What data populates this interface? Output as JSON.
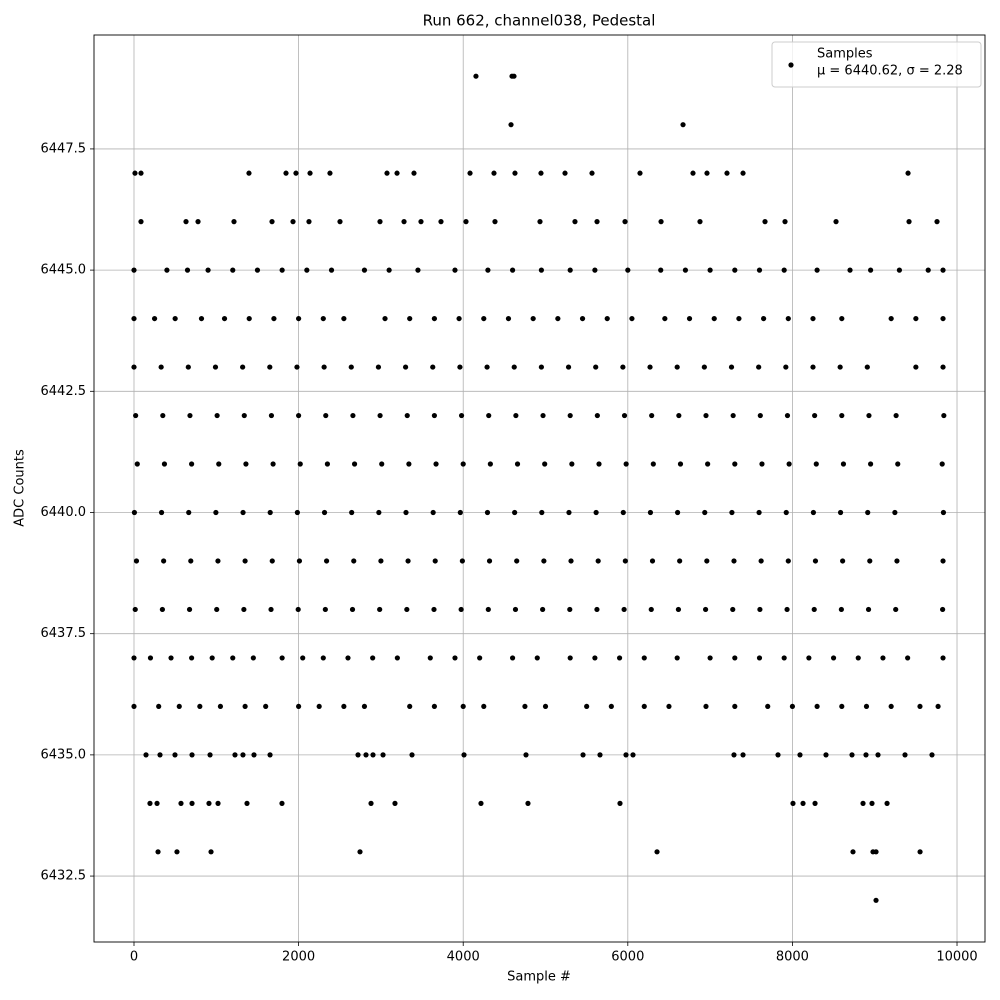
{
  "chart_data": {
    "type": "scatter",
    "title": "Run 662, channel038, Pedestal",
    "x_label": "Sample #",
    "y_label": "ADC Counts",
    "legend_note": "μ = 6440.62, σ = 2.28",
    "legend": "upper right",
    "grid": true,
    "xlim": [
      -486,
      10340
    ],
    "ylim": [
      6431.14,
      6449.85
    ],
    "xticks": [
      0,
      2000,
      4000,
      6000,
      8000,
      10000
    ],
    "yticks": [
      6432.5,
      {
        "value": 6435,
        "label": "6435.0"
      },
      6437.5,
      {
        "value": 6440,
        "label": "6440.0"
      },
      6442.5,
      {
        "value": 6445,
        "label": "6445.0"
      },
      6447.5
    ],
    "series": [
      {
        "name": "Samples",
        "color": "#000000",
        "x": [
          4155,
          4593,
          4617,
          4581,
          6671,
          12,
          85,
          1397,
          1847,
          1968,
          2139,
          2381,
          3074,
          3196,
          3402,
          4083,
          4374,
          4629,
          4945,
          5237,
          5565,
          6148,
          6792,
          6962,
          7205,
          7400,
          9405,
          85,
          632,
          778,
          1215,
          1677,
          1932,
          2126,
          2503,
          2989,
          3281,
          3487,
          3730,
          4034,
          4386,
          4933,
          5358,
          5626,
          5966,
          6404,
          6877,
          7667,
          7910,
          8530,
          9417,
          9757,
          0,
          400,
          650,
          900,
          1200,
          1500,
          1800,
          2100,
          2400,
          2800,
          3100,
          3450,
          3900,
          4300,
          4600,
          4950,
          5300,
          5600,
          6000,
          6400,
          6700,
          7000,
          7300,
          7600,
          7900,
          8300,
          8700,
          8950,
          9300,
          9650,
          9830,
          0,
          250,
          500,
          820,
          1100,
          1400,
          1700,
          2000,
          2300,
          2550,
          3050,
          3350,
          3650,
          3950,
          4250,
          4550,
          4850,
          5150,
          5450,
          5750,
          6050,
          6450,
          6750,
          7050,
          7350,
          7650,
          7950,
          8250,
          8600,
          9200,
          9500,
          9830,
          0,
          330,
          660,
          990,
          1320,
          1650,
          1980,
          2310,
          2640,
          2970,
          3300,
          3630,
          3960,
          4290,
          4620,
          4950,
          5280,
          5610,
          5940,
          6270,
          6600,
          6930,
          7260,
          7590,
          7920,
          8250,
          8580,
          8910,
          9500,
          9830,
          20,
          350,
          680,
          1010,
          1340,
          1670,
          2000,
          2330,
          2660,
          2990,
          3320,
          3650,
          3980,
          4310,
          4640,
          4970,
          5300,
          5630,
          5960,
          6290,
          6620,
          6950,
          7280,
          7610,
          7940,
          8270,
          8600,
          8930,
          9260,
          9840,
          40,
          370,
          700,
          1030,
          1360,
          1690,
          2020,
          2350,
          2680,
          3010,
          3340,
          3670,
          4000,
          4330,
          4660,
          4990,
          5320,
          5650,
          5980,
          6310,
          6640,
          6970,
          7300,
          7630,
          7960,
          8290,
          8620,
          8950,
          9280,
          9820,
          5,
          335,
          665,
          995,
          1325,
          1655,
          1985,
          2315,
          2645,
          2975,
          3305,
          3635,
          3965,
          4295,
          4625,
          4955,
          5285,
          5615,
          5945,
          6275,
          6605,
          6935,
          7265,
          7595,
          7925,
          8255,
          8585,
          8915,
          9245,
          9835,
          30,
          360,
          690,
          1020,
          1350,
          1680,
          2010,
          2340,
          2670,
          3000,
          3330,
          3660,
          3990,
          4320,
          4650,
          4980,
          5310,
          5640,
          5970,
          6300,
          6630,
          6960,
          7290,
          7620,
          7950,
          8280,
          8610,
          8940,
          9270,
          9830,
          15,
          345,
          675,
          1005,
          1335,
          1665,
          1995,
          2325,
          2655,
          2985,
          3315,
          3645,
          3975,
          4305,
          4635,
          4965,
          5295,
          5625,
          5955,
          6285,
          6615,
          6945,
          7275,
          7605,
          7935,
          8265,
          8595,
          8925,
          9255,
          9825,
          0,
          200,
          450,
          700,
          950,
          1200,
          1450,
          1800,
          2050,
          2300,
          2600,
          2900,
          3200,
          3600,
          3900,
          4200,
          4600,
          4900,
          5300,
          5600,
          5900,
          6200,
          6600,
          7000,
          7300,
          7600,
          7900,
          8200,
          8500,
          8800,
          9100,
          9400,
          9830,
          0,
          300,
          550,
          800,
          1050,
          1350,
          1600,
          2000,
          2250,
          2550,
          2800,
          3350,
          3650,
          4000,
          4250,
          4750,
          5000,
          5500,
          5800,
          6200,
          6500,
          6950,
          7300,
          7700,
          8000,
          8300,
          8600,
          8900,
          9200,
          9550,
          9770,
          146,
          316,
          498,
          705,
          924,
          1227,
          1324,
          1458,
          1653,
          2722,
          2819,
          2904,
          3026,
          3378,
          4010,
          4763,
          5456,
          5662,
          5978,
          6063,
          7290,
          7400,
          7825,
          8092,
          8408,
          8724,
          8894,
          9040,
          9368,
          9696,
          194,
          280,
          571,
          705,
          911,
          1021,
          1373,
          1798,
          2880,
          3171,
          4216,
          4787,
          5905,
          8007,
          8129,
          8275,
          8858,
          8967,
          9150,
          292,
          522,
          936,
          2746,
          6355,
          8736,
          8979,
          9016,
          9551,
          9016
        ],
        "values": [
          6449,
          6449,
          6449,
          6448,
          6448,
          6447,
          6447,
          6447,
          6447,
          6447,
          6447,
          6447,
          6447,
          6447,
          6447,
          6447,
          6447,
          6447,
          6447,
          6447,
          6447,
          6447,
          6447,
          6447,
          6447,
          6447,
          6447,
          6446,
          6446,
          6446,
          6446,
          6446,
          6446,
          6446,
          6446,
          6446,
          6446,
          6446,
          6446,
          6446,
          6446,
          6446,
          6446,
          6446,
          6446,
          6446,
          6446,
          6446,
          6446,
          6446,
          6446,
          6446,
          6445,
          6445,
          6445,
          6445,
          6445,
          6445,
          6445,
          6445,
          6445,
          6445,
          6445,
          6445,
          6445,
          6445,
          6445,
          6445,
          6445,
          6445,
          6445,
          6445,
          6445,
          6445,
          6445,
          6445,
          6445,
          6445,
          6445,
          6445,
          6445,
          6445,
          6445,
          6444,
          6444,
          6444,
          6444,
          6444,
          6444,
          6444,
          6444,
          6444,
          6444,
          6444,
          6444,
          6444,
          6444,
          6444,
          6444,
          6444,
          6444,
          6444,
          6444,
          6444,
          6444,
          6444,
          6444,
          6444,
          6444,
          6444,
          6444,
          6444,
          6444,
          6444,
          6444,
          6443,
          6443,
          6443,
          6443,
          6443,
          6443,
          6443,
          6443,
          6443,
          6443,
          6443,
          6443,
          6443,
          6443,
          6443,
          6443,
          6443,
          6443,
          6443,
          6443,
          6443,
          6443,
          6443,
          6443,
          6443,
          6443,
          6443,
          6443,
          6443,
          6443,
          6442,
          6442,
          6442,
          6442,
          6442,
          6442,
          6442,
          6442,
          6442,
          6442,
          6442,
          6442,
          6442,
          6442,
          6442,
          6442,
          6442,
          6442,
          6442,
          6442,
          6442,
          6442,
          6442,
          6442,
          6442,
          6442,
          6442,
          6442,
          6442,
          6442,
          6441,
          6441,
          6441,
          6441,
          6441,
          6441,
          6441,
          6441,
          6441,
          6441,
          6441,
          6441,
          6441,
          6441,
          6441,
          6441,
          6441,
          6441,
          6441,
          6441,
          6441,
          6441,
          6441,
          6441,
          6441,
          6441,
          6441,
          6441,
          6441,
          6441,
          6440,
          6440,
          6440,
          6440,
          6440,
          6440,
          6440,
          6440,
          6440,
          6440,
          6440,
          6440,
          6440,
          6440,
          6440,
          6440,
          6440,
          6440,
          6440,
          6440,
          6440,
          6440,
          6440,
          6440,
          6440,
          6440,
          6440,
          6440,
          6440,
          6440,
          6439,
          6439,
          6439,
          6439,
          6439,
          6439,
          6439,
          6439,
          6439,
          6439,
          6439,
          6439,
          6439,
          6439,
          6439,
          6439,
          6439,
          6439,
          6439,
          6439,
          6439,
          6439,
          6439,
          6439,
          6439,
          6439,
          6439,
          6439,
          6439,
          6439,
          6438,
          6438,
          6438,
          6438,
          6438,
          6438,
          6438,
          6438,
          6438,
          6438,
          6438,
          6438,
          6438,
          6438,
          6438,
          6438,
          6438,
          6438,
          6438,
          6438,
          6438,
          6438,
          6438,
          6438,
          6438,
          6438,
          6438,
          6438,
          6438,
          6438,
          6437,
          6437,
          6437,
          6437,
          6437,
          6437,
          6437,
          6437,
          6437,
          6437,
          6437,
          6437,
          6437,
          6437,
          6437,
          6437,
          6437,
          6437,
          6437,
          6437,
          6437,
          6437,
          6437,
          6437,
          6437,
          6437,
          6437,
          6437,
          6437,
          6437,
          6437,
          6437,
          6437,
          6436,
          6436,
          6436,
          6436,
          6436,
          6436,
          6436,
          6436,
          6436,
          6436,
          6436,
          6436,
          6436,
          6436,
          6436,
          6436,
          6436,
          6436,
          6436,
          6436,
          6436,
          6436,
          6436,
          6436,
          6436,
          6436,
          6436,
          6436,
          6436,
          6436,
          6436,
          6435,
          6435,
          6435,
          6435,
          6435,
          6435,
          6435,
          6435,
          6435,
          6435,
          6435,
          6435,
          6435,
          6435,
          6435,
          6435,
          6435,
          6435,
          6435,
          6435,
          6435,
          6435,
          6435,
          6435,
          6435,
          6435,
          6435,
          6435,
          6435,
          6435,
          6434,
          6434,
          6434,
          6434,
          6434,
          6434,
          6434,
          6434,
          6434,
          6434,
          6434,
          6434,
          6434,
          6434,
          6434,
          6434,
          6434,
          6434,
          6434,
          6433,
          6433,
          6433,
          6433,
          6433,
          6433,
          6433,
          6433,
          6433,
          6432
        ]
      }
    ]
  }
}
